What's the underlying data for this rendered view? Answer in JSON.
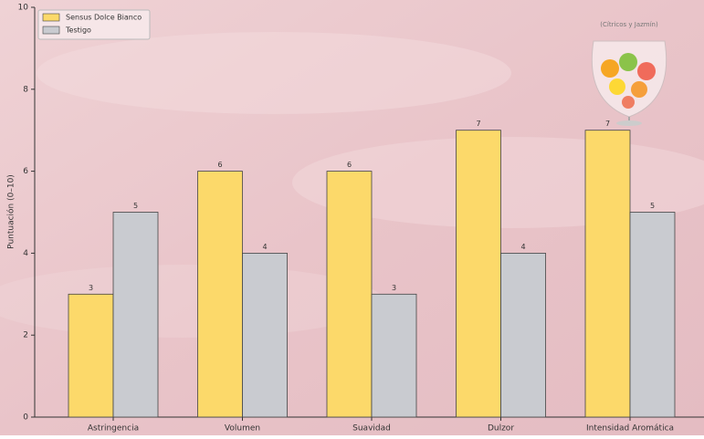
{
  "chart_data": {
    "type": "bar",
    "y_label": "Puntuación (0–10)",
    "annotation": "(Cítricos y Jazmín)",
    "categories": [
      "Astringencia",
      "Volumen",
      "Suavidad",
      "Dulzor",
      "Intensidad Aromática"
    ],
    "series": [
      {
        "name": "Sensus Dolce Bianco",
        "color": "#fcd96a",
        "values": [
          3,
          6,
          6,
          7,
          7
        ]
      },
      {
        "name": "Testigo",
        "color": "#c9cbd0",
        "values": [
          5,
          4,
          3,
          4,
          5
        ]
      }
    ],
    "ylim": [
      0,
      10
    ],
    "yticks": [
      0,
      2,
      4,
      6,
      8,
      10
    ],
    "legend": "upper left"
  }
}
